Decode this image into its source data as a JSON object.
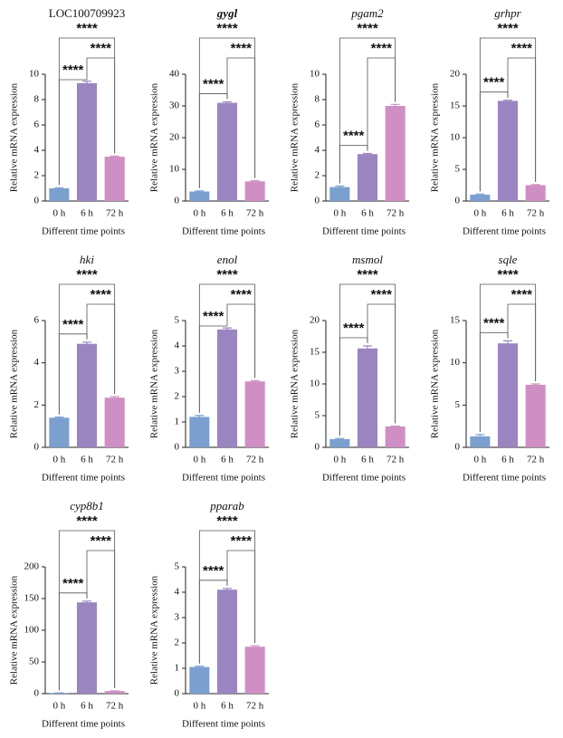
{
  "chart_data": [
    {
      "type": "bar",
      "title": "LOC100709923",
      "xlabel": "Different time points",
      "ylabel": "Relative mRNA expression",
      "categories": [
        "0 h",
        "6 h",
        "72 h"
      ],
      "values": [
        1.0,
        9.3,
        3.5
      ],
      "errors": [
        0.05,
        0.15,
        0.05
      ],
      "colors": [
        "#7b9fcf",
        "#9b85c0",
        "#cf8fc4"
      ],
      "ylim": [
        0,
        10
      ],
      "yticks": [
        0,
        2,
        4,
        6,
        8,
        10
      ],
      "annotations": [
        {
          "text": "****",
          "between": [
            0,
            1
          ]
        },
        {
          "text": "****",
          "between": [
            1,
            2
          ]
        },
        {
          "text": "****",
          "between": [
            0,
            2
          ]
        }
      ]
    },
    {
      "type": "bar",
      "title": "gygl",
      "xlabel": "Different time points",
      "ylabel": "Relative mRNA expression",
      "categories": [
        "0 h",
        "6 h",
        "72 h"
      ],
      "values": [
        3.0,
        31,
        6.2
      ],
      "errors": [
        0.2,
        0.3,
        0.2
      ],
      "colors": [
        "#7b9fcf",
        "#9b85c0",
        "#cf8fc4"
      ],
      "ylim": [
        0,
        40
      ],
      "yticks": [
        0,
        10,
        20,
        30,
        40
      ],
      "annotations": [
        {
          "text": "****",
          "between": [
            0,
            1
          ]
        },
        {
          "text": "****",
          "between": [
            1,
            2
          ]
        },
        {
          "text": "****",
          "between": [
            0,
            2
          ]
        }
      ]
    },
    {
      "type": "bar",
      "title": "pgam2",
      "xlabel": "Different time points",
      "ylabel": "Relative mRNA expression",
      "categories": [
        "0 h",
        "6 h",
        "72 h"
      ],
      "values": [
        1.1,
        3.7,
        7.5
      ],
      "errors": [
        0.08,
        0.05,
        0.12
      ],
      "colors": [
        "#7b9fcf",
        "#9b85c0",
        "#cf8fc4"
      ],
      "ylim": [
        0,
        10
      ],
      "yticks": [
        0,
        2,
        4,
        6,
        8,
        10
      ],
      "annotations": [
        {
          "text": "****",
          "between": [
            0,
            1
          ]
        },
        {
          "text": "****",
          "between": [
            1,
            2
          ]
        },
        {
          "text": "****",
          "between": [
            0,
            2
          ]
        }
      ]
    },
    {
      "type": "bar",
      "title": "grhpr",
      "xlabel": "Different time points",
      "ylabel": "Relative mRNA expression",
      "categories": [
        "0 h",
        "6 h",
        "72 h"
      ],
      "values": [
        1.0,
        15.8,
        2.5
      ],
      "errors": [
        0.1,
        0.1,
        0.1
      ],
      "colors": [
        "#7b9fcf",
        "#9b85c0",
        "#cf8fc4"
      ],
      "ylim": [
        0,
        20
      ],
      "yticks": [
        0,
        5,
        10,
        15,
        20
      ],
      "annotations": [
        {
          "text": "****",
          "between": [
            0,
            1
          ]
        },
        {
          "text": "****",
          "between": [
            1,
            2
          ]
        },
        {
          "text": "****",
          "between": [
            0,
            2
          ]
        }
      ]
    },
    {
      "type": "bar",
      "title": "hki",
      "xlabel": "Different time points",
      "ylabel": "Relative mRNA expression",
      "categories": [
        "0 h",
        "6 h",
        "72 h"
      ],
      "values": [
        1.4,
        4.9,
        2.35
      ],
      "errors": [
        0.03,
        0.08,
        0.05
      ],
      "colors": [
        "#7b9fcf",
        "#9b85c0",
        "#cf8fc4"
      ],
      "ylim": [
        0,
        6
      ],
      "yticks": [
        0,
        2,
        4,
        6
      ],
      "annotations": [
        {
          "text": "****",
          "between": [
            0,
            1
          ]
        },
        {
          "text": "****",
          "between": [
            1,
            2
          ]
        },
        {
          "text": "****",
          "between": [
            0,
            2
          ]
        }
      ]
    },
    {
      "type": "bar",
      "title": "enol",
      "xlabel": "Different time points",
      "ylabel": "Relative mRNA expression",
      "categories": [
        "0 h",
        "6 h",
        "72 h"
      ],
      "values": [
        1.2,
        4.65,
        2.6
      ],
      "errors": [
        0.06,
        0.06,
        0.03
      ],
      "colors": [
        "#7b9fcf",
        "#9b85c0",
        "#cf8fc4"
      ],
      "ylim": [
        0,
        5
      ],
      "yticks": [
        0,
        1,
        2,
        3,
        4,
        5
      ],
      "annotations": [
        {
          "text": "****",
          "between": [
            0,
            1
          ]
        },
        {
          "text": "****",
          "between": [
            1,
            2
          ]
        },
        {
          "text": "****",
          "between": [
            0,
            2
          ]
        }
      ]
    },
    {
      "type": "bar",
      "title": "msmol",
      "xlabel": "Different time points",
      "ylabel": "Relative mRNA expression",
      "categories": [
        "0 h",
        "6 h",
        "72 h"
      ],
      "values": [
        1.3,
        15.6,
        3.3
      ],
      "errors": [
        0.1,
        0.4,
        0.05
      ],
      "colors": [
        "#7b9fcf",
        "#9b85c0",
        "#cf8fc4"
      ],
      "ylim": [
        0,
        20
      ],
      "yticks": [
        0,
        5,
        10,
        15,
        20
      ],
      "annotations": [
        {
          "text": "****",
          "between": [
            0,
            1
          ]
        },
        {
          "text": "****",
          "between": [
            1,
            2
          ]
        },
        {
          "text": "****",
          "between": [
            0,
            2
          ]
        }
      ]
    },
    {
      "type": "bar",
      "title": "sqle",
      "xlabel": "Different time points",
      "ylabel": "Relative mRNA expression",
      "categories": [
        "0 h",
        "6 h",
        "72 h"
      ],
      "values": [
        1.3,
        12.3,
        7.4
      ],
      "errors": [
        0.2,
        0.3,
        0.1
      ],
      "colors": [
        "#7b9fcf",
        "#9b85c0",
        "#cf8fc4"
      ],
      "ylim": [
        0,
        15
      ],
      "yticks": [
        0,
        5,
        10,
        15
      ],
      "annotations": [
        {
          "text": "****",
          "between": [
            0,
            1
          ]
        },
        {
          "text": "****",
          "between": [
            1,
            2
          ]
        },
        {
          "text": "****",
          "between": [
            0,
            2
          ]
        }
      ]
    },
    {
      "type": "bar",
      "title": "cyp8b1",
      "xlabel": "Different time points",
      "ylabel": "Relative mRNA expression",
      "categories": [
        "0 h",
        "6 h",
        "72 h"
      ],
      "values": [
        1,
        144,
        4
      ],
      "errors": [
        0.1,
        2,
        0.3
      ],
      "colors": [
        "#7b9fcf",
        "#9b85c0",
        "#cf8fc4"
      ],
      "ylim": [
        0,
        200
      ],
      "yticks": [
        0,
        50,
        100,
        150,
        200
      ],
      "annotations": [
        {
          "text": "****",
          "between": [
            0,
            1
          ]
        },
        {
          "text": "****",
          "between": [
            1,
            2
          ]
        },
        {
          "text": "****",
          "between": [
            0,
            2
          ]
        }
      ]
    },
    {
      "type": "bar",
      "title": "pparab",
      "xlabel": "Different time points",
      "ylabel": "Relative mRNA expression",
      "categories": [
        "0 h",
        "6 h",
        "72 h"
      ],
      "values": [
        1.05,
        4.1,
        1.85
      ],
      "errors": [
        0.03,
        0.05,
        0.04
      ],
      "colors": [
        "#7b9fcf",
        "#9b85c0",
        "#cf8fc4"
      ],
      "ylim": [
        0,
        5
      ],
      "yticks": [
        0,
        1,
        2,
        3,
        4,
        5
      ],
      "annotations": [
        {
          "text": "****",
          "between": [
            0,
            1
          ]
        },
        {
          "text": "****",
          "between": [
            1,
            2
          ]
        },
        {
          "text": "****",
          "between": [
            0,
            2
          ]
        }
      ]
    }
  ]
}
